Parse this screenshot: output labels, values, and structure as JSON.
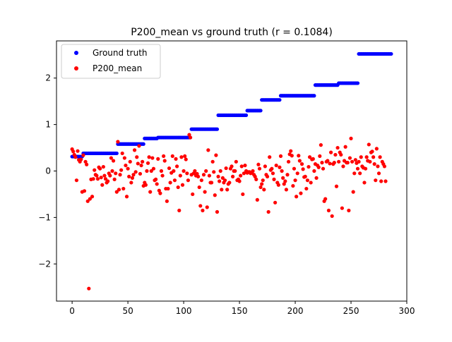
{
  "chart_data": {
    "type": "scatter",
    "title": "P200_mean vs ground truth (r = 0.1084)",
    "xlabel": "",
    "ylabel": "",
    "xlim": [
      -14,
      300
    ],
    "ylim": [
      -2.8,
      2.8
    ],
    "x_ticks": [
      0,
      50,
      100,
      150,
      200,
      250,
      300
    ],
    "y_ticks": [
      -2,
      -1,
      0,
      1,
      2
    ],
    "grid": false,
    "legend": "top-left",
    "series": [
      {
        "name": "Ground truth",
        "color": "#0000ff",
        "segments": [
          {
            "x_start": 0,
            "x_end": 9,
            "y": 0.31
          },
          {
            "x_start": 10,
            "x_end": 40,
            "y": 0.38
          },
          {
            "x_start": 41,
            "x_end": 64,
            "y": 0.58
          },
          {
            "x_start": 65,
            "x_end": 76,
            "y": 0.7
          },
          {
            "x_start": 77,
            "x_end": 106,
            "y": 0.72
          },
          {
            "x_start": 107,
            "x_end": 130,
            "y": 0.9
          },
          {
            "x_start": 131,
            "x_end": 156,
            "y": 1.2
          },
          {
            "x_start": 157,
            "x_end": 169,
            "y": 1.3
          },
          {
            "x_start": 170,
            "x_end": 186,
            "y": 1.53
          },
          {
            "x_start": 187,
            "x_end": 217,
            "y": 1.62
          },
          {
            "x_start": 218,
            "x_end": 238,
            "y": 1.85
          },
          {
            "x_start": 239,
            "x_end": 256,
            "y": 1.89
          },
          {
            "x_start": 257,
            "x_end": 286,
            "y": 2.52
          }
        ]
      },
      {
        "name": "P200_mean",
        "color": "#ff0000",
        "values": [
          0.47,
          0.42,
          0.35,
          0.3,
          -0.2,
          0.43,
          0.24,
          0.2,
          0.25,
          -0.45,
          0.34,
          -0.43,
          0.2,
          0.14,
          -0.65,
          -2.53,
          -0.6,
          -0.18,
          -0.55,
          -0.17,
          0.02,
          -0.08,
          -0.1,
          -0.17,
          0.08,
          0.05,
          -0.14,
          -0.3,
          0.09,
          -0.1,
          -0.17,
          -0.25,
          -0.22,
          -0.05,
          -0.1,
          0.28,
          0.0,
          0.22,
          -0.18,
          -0.05,
          -0.45,
          0.63,
          -0.4,
          -0.08,
          0.02,
          0.38,
          -0.38,
          0.28,
          0.12,
          -0.55,
          0.05,
          -0.12,
          0.2,
          -0.25,
          -0.15,
          -0.08,
          0.45,
          -0.02,
          0.3,
          0.16,
          0.54,
          -0.06,
          0.12,
          0.2,
          -0.32,
          -0.25,
          -0.3,
          0.0,
          0.17,
          0.3,
          -0.45,
          0.0,
          0.28,
          0.05,
          -0.2,
          -0.18,
          -0.28,
          0.26,
          -0.42,
          -0.48,
          0.0,
          -0.1,
          0.32,
          0.22,
          -0.38,
          -0.65,
          -0.38,
          0.06,
          -0.25,
          -0.04,
          0.32,
          0.0,
          -0.2,
          0.26,
          0.1,
          -0.35,
          -0.85,
          -0.1,
          0.3,
          -0.3,
          0.0,
          0.32,
          0.25,
          -0.05,
          -0.2,
          0.78,
          0.72,
          -0.08,
          -0.5,
          -0.05,
          0.0,
          -0.1,
          -0.06,
          -0.12,
          -0.35,
          -0.75,
          -0.2,
          -0.85,
          -0.08,
          -0.45,
          0.0,
          -0.78,
          0.45,
          -0.1,
          -0.25,
          -0.25,
          0.2,
          -0.02,
          -0.52,
          0.34,
          -0.88,
          -0.12,
          -0.22,
          0.0,
          -0.4,
          -0.15,
          -0.25,
          -0.2,
          0.06,
          -0.4,
          -0.28,
          -0.25,
          0.05,
          0.1,
          -0.12,
          0.0,
          0.0,
          0.2,
          -0.2,
          -0.18,
          -0.22,
          -0.1,
          0.1,
          -0.5,
          -0.05,
          0.12,
          0.0,
          -0.04,
          -0.02,
          -0.02,
          -0.05,
          -0.04,
          0.0,
          -0.08,
          -0.12,
          -0.18,
          -0.62,
          0.14,
          0.05,
          -0.35,
          -0.28,
          -0.2,
          -0.4,
          0.1,
          -0.08,
          -0.12,
          -0.88,
          0.3,
          0.02,
          0.05,
          -0.05,
          -0.18,
          -0.68,
          0.12,
          -0.25,
          -0.3,
          0.08,
          0.32,
          0.0,
          -0.15,
          -0.28,
          -0.22,
          -0.4,
          -0.08,
          0.2,
          0.36,
          0.43,
          0.33,
          -0.32,
          0.05,
          -0.2,
          -0.55,
          -0.05,
          0.33,
          0.22,
          -0.48,
          0.15,
          0.04,
          -0.13,
          -0.12,
          -0.38,
          -0.2,
          0.09,
          0.3,
          -0.25,
          0.25,
          0.26,
          0.0,
          0.15,
          -0.15,
          0.12,
          0.08,
          0.32,
          0.56,
          0.18,
          0.05,
          -0.65,
          -0.6,
          0.2,
          0.22,
          -0.85,
          0.16,
          0.4,
          -0.97,
          0.15,
          0.18,
          0.35,
          -0.33,
          0.5,
          0.2,
          0.4,
          0.35,
          -0.8,
          0.1,
          0.22,
          0.52,
          0.18,
          0.18,
          -0.85,
          0.28,
          0.7,
          0.2,
          -0.45,
          -0.05,
          0.24,
          0.17,
          0.05,
          0.2,
          -0.05,
          0.3,
          0.1,
          0.07,
          -0.25,
          0.05,
          0.3,
          0.22,
          0.57,
          0.2,
          0.4,
          0.42,
          0.3,
          0.15,
          -0.2,
          0.48,
          0.1,
          -0.05,
          0.3,
          -0.22,
          0.2,
          0.15,
          0.1,
          -0.22
        ]
      }
    ]
  }
}
